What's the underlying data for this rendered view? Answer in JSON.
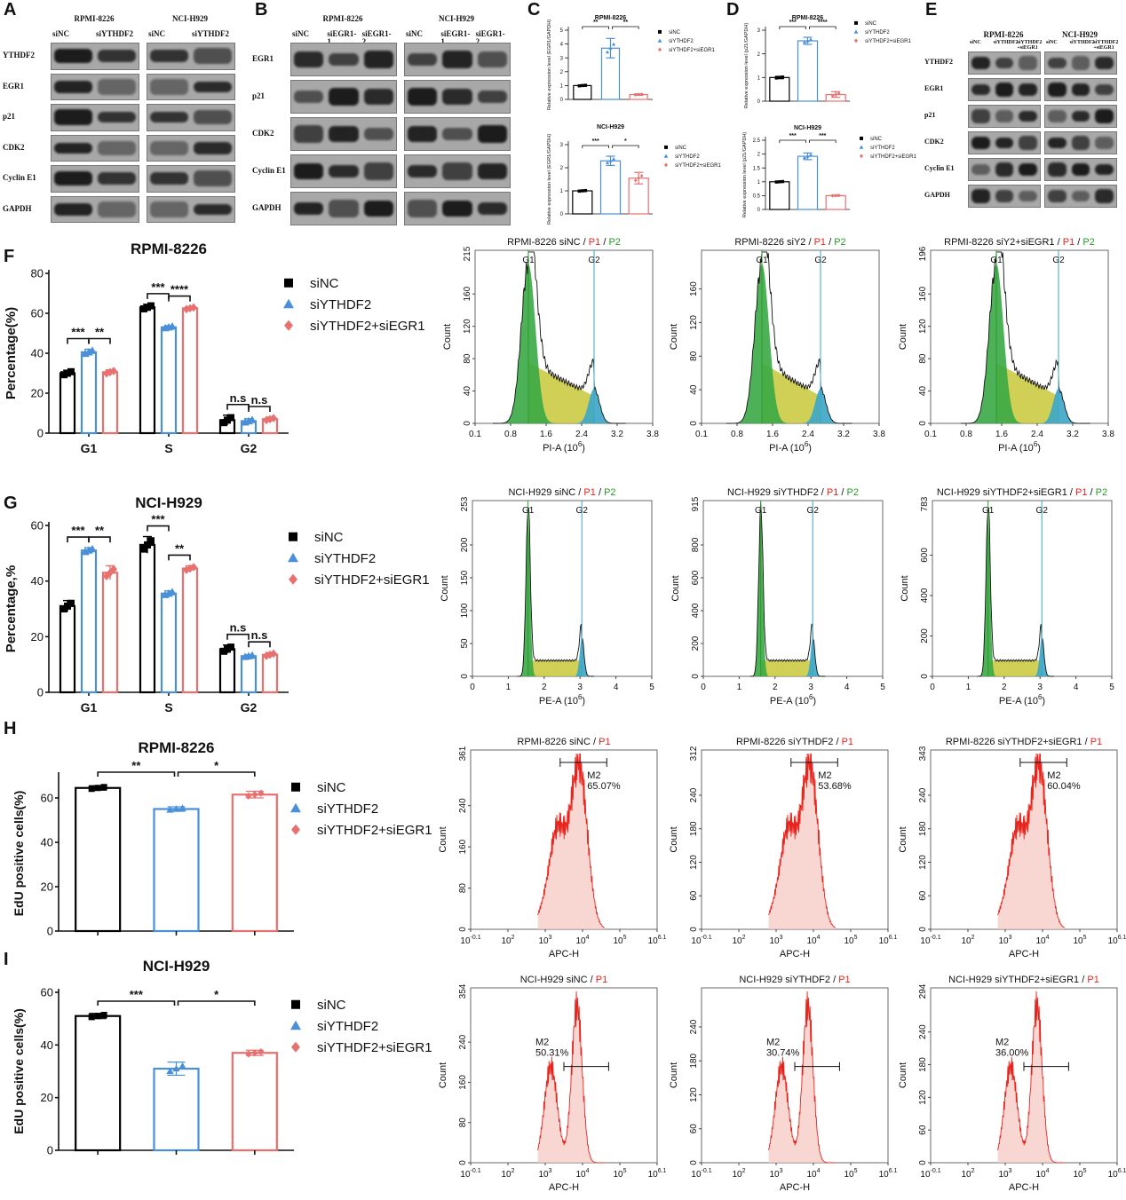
{
  "panels": {
    "A": "A",
    "B": "B",
    "C": "C",
    "D": "D",
    "E": "E",
    "F": "F",
    "G": "G",
    "H": "H",
    "I": "I"
  },
  "blotA": {
    "groups": [
      {
        "title": "RPMI-8226",
        "lanes": [
          "siNC",
          "siYTHDF2"
        ]
      },
      {
        "title": "NCI-H929",
        "lanes": [
          "siNC",
          "siYTHDF2"
        ]
      }
    ],
    "rows": [
      "YTHDF2",
      "EGR1",
      "p21",
      "CDK2",
      "Cyclin E1",
      "GAPDH"
    ]
  },
  "blotB": {
    "groups": [
      {
        "title": "RPMI-8226",
        "lanes": [
          "siNC",
          "siEGR1-1",
          "siEGR1-2"
        ]
      },
      {
        "title": "NCI-H929",
        "lanes": [
          "siNC",
          "siEGR1-1",
          "siEGR1-2"
        ]
      }
    ],
    "rows": [
      "EGR1",
      "p21",
      "CDK2",
      "Cyclin E1",
      "GAPDH"
    ]
  },
  "blotE": {
    "groups": [
      {
        "title": "RPMI-8226",
        "lanes": [
          "siNC",
          "siYTHDF2",
          "siYTHDF2 +siEGR1"
        ]
      },
      {
        "title": "NCI-H929",
        "lanes": [
          "siNC",
          "siYTHDF2",
          "siYTHDF2 +siEGR1"
        ]
      }
    ],
    "rows": [
      "YTHDF2",
      "EGR1",
      "p21",
      "CDK2",
      "Cyclin E1",
      "GAPDH"
    ]
  },
  "legend3": [
    "siNC",
    "siYTHDF2",
    "siYTHDF2+siEGR1"
  ],
  "colors": {
    "siNC": "#000000",
    "siYTHDF2": "#4a90d9",
    "siYTHDF2+siEGR1": "#e8706f",
    "gate_red": "#e8241d",
    "p2_green": "#2a9a2a"
  },
  "chart_data": [
    {
      "id": "C1",
      "type": "bar",
      "title": "RPMI-8226",
      "ylabel": "Relative expression level (EGR1/GAPDH)",
      "ylim": [
        0,
        5
      ],
      "yticks": [
        0,
        1,
        2,
        3,
        4,
        5
      ],
      "categories": [
        "siNC",
        "siYTHDF2",
        "siYTHDF2+siEGR1"
      ],
      "values": [
        1.0,
        3.7,
        0.35
      ],
      "errors": [
        0.05,
        0.7,
        0.05
      ],
      "sig": [
        {
          "from": 0,
          "to": 1,
          "label": "**"
        },
        {
          "from": 1,
          "to": 2,
          "label": "**"
        }
      ]
    },
    {
      "id": "C2",
      "type": "bar",
      "title": "NCI-H929",
      "ylabel": "Relative expression level (EGR1/GAPDH)",
      "ylim": [
        0,
        3
      ],
      "yticks": [
        0,
        1,
        2,
        3
      ],
      "categories": [
        "siNC",
        "siYTHDF2",
        "siYTHDF2+siEGR1"
      ],
      "values": [
        1.0,
        2.3,
        1.55
      ],
      "errors": [
        0.03,
        0.2,
        0.25
      ],
      "sig": [
        {
          "from": 0,
          "to": 1,
          "label": "***"
        },
        {
          "from": 1,
          "to": 2,
          "label": "*"
        }
      ]
    },
    {
      "id": "D1",
      "type": "bar",
      "title": "RPMI-8226",
      "ylabel": "Relative expression level (p21/GAPDH)",
      "ylim": [
        0,
        3
      ],
      "yticks": [
        0,
        1,
        2,
        3
      ],
      "categories": [
        "siNC",
        "siYTHDF2",
        "siYTHDF2+siEGR1"
      ],
      "values": [
        1.0,
        2.55,
        0.28
      ],
      "errors": [
        0.05,
        0.15,
        0.12
      ],
      "sig": [
        {
          "from": 0,
          "to": 1,
          "label": "***"
        },
        {
          "from": 1,
          "to": 2,
          "label": "****"
        }
      ]
    },
    {
      "id": "D2",
      "type": "bar",
      "title": "NCI-H929",
      "ylabel": "Relative expression level (p21/GAPDH)",
      "ylim": [
        0,
        2.5
      ],
      "yticks": [
        0.0,
        0.5,
        1.0,
        1.5,
        2.0,
        2.5
      ],
      "categories": [
        "siNC",
        "siYTHDF2",
        "siYTHDF2+siEGR1"
      ],
      "values": [
        1.0,
        1.92,
        0.5
      ],
      "errors": [
        0.02,
        0.12,
        0.02
      ],
      "sig": [
        {
          "from": 0,
          "to": 1,
          "label": "***"
        },
        {
          "from": 1,
          "to": 2,
          "label": "***"
        }
      ]
    },
    {
      "id": "F",
      "type": "bar",
      "title": "RPMI-8226",
      "ylabel": "Percentage(%)",
      "ylim": [
        0,
        80
      ],
      "yticks": [
        0,
        20,
        40,
        60,
        80
      ],
      "categories": [
        "G1",
        "S",
        "G2"
      ],
      "series": [
        {
          "name": "siNC",
          "values": [
            30,
            63,
            6.5
          ],
          "errors": [
            1.5,
            1.5,
            2.5
          ]
        },
        {
          "name": "siYTHDF2",
          "values": [
            40.5,
            53,
            6
          ],
          "errors": [
            1.5,
            0.8,
            1.2
          ]
        },
        {
          "name": "siYTHDF2+siEGR1",
          "values": [
            30.5,
            62.5,
            7
          ],
          "errors": [
            1.2,
            0.8,
            1
          ]
        }
      ],
      "sig": [
        {
          "cat": 0,
          "a": 0,
          "b": 1,
          "label": "***"
        },
        {
          "cat": 0,
          "a": 1,
          "b": 2,
          "label": "**"
        },
        {
          "cat": 1,
          "a": 0,
          "b": 1,
          "label": "***"
        },
        {
          "cat": 1,
          "a": 1,
          "b": 2,
          "label": "****"
        },
        {
          "cat": 2,
          "a": 0,
          "b": 1,
          "label": "n.s"
        },
        {
          "cat": 2,
          "a": 1,
          "b": 2,
          "label": "n.s"
        }
      ]
    },
    {
      "id": "G",
      "type": "bar",
      "title": "NCI-H929",
      "ylabel": "Percentage,%",
      "ylim": [
        0,
        60
      ],
      "yticks": [
        0,
        20,
        40,
        60
      ],
      "categories": [
        "G1",
        "S",
        "G2"
      ],
      "series": [
        {
          "name": "siNC",
          "values": [
            31,
            53,
            15.5
          ],
          "errors": [
            2,
            3,
            1.5
          ]
        },
        {
          "name": "siYTHDF2",
          "values": [
            51,
            35.5,
            13
          ],
          "errors": [
            1,
            1,
            0.5
          ]
        },
        {
          "name": "siYTHDF2+siEGR1",
          "values": [
            43,
            44.5,
            13.5
          ],
          "errors": [
            2.5,
            1,
            0.8
          ]
        }
      ],
      "sig": [
        {
          "cat": 0,
          "a": 0,
          "b": 1,
          "label": "***"
        },
        {
          "cat": 0,
          "a": 1,
          "b": 2,
          "label": "**"
        },
        {
          "cat": 1,
          "a": 0,
          "b": 1,
          "label": "***"
        },
        {
          "cat": 1,
          "a": 1,
          "b": 2,
          "label": "**"
        },
        {
          "cat": 2,
          "a": 0,
          "b": 1,
          "label": "n.s"
        },
        {
          "cat": 2,
          "a": 1,
          "b": 2,
          "label": "n.s"
        }
      ]
    },
    {
      "id": "H",
      "type": "bar",
      "title": "RPMI-8226",
      "ylabel": "EdU positive cells(%)",
      "ylim": [
        0,
        70
      ],
      "yticks": [
        0,
        20,
        40,
        60
      ],
      "categories": [
        "siNC",
        "siYTHDF2",
        "siYTHDF2+siEGR1"
      ],
      "values": [
        64.5,
        55,
        61.5
      ],
      "errors": [
        1,
        1,
        1.5
      ],
      "sig": [
        {
          "from": 0,
          "to": 1,
          "label": "**"
        },
        {
          "from": 1,
          "to": 2,
          "label": "*"
        }
      ]
    },
    {
      "id": "I",
      "type": "bar",
      "title": "NCI-H929",
      "ylabel": "EdU positive cells(%)",
      "ylim": [
        0,
        60
      ],
      "yticks": [
        0,
        20,
        40,
        60
      ],
      "categories": [
        "siNC",
        "siYTHDF2",
        "siYTHDF2+siEGR1"
      ],
      "values": [
        51,
        31,
        37
      ],
      "errors": [
        1,
        2.5,
        1
      ],
      "sig": [
        {
          "from": 0,
          "to": 1,
          "label": "***"
        },
        {
          "from": 1,
          "to": 2,
          "label": "*"
        }
      ]
    }
  ],
  "flow_cellcycle": [
    {
      "title": [
        "RPMI-8226 siNC / ",
        "P1",
        " / ",
        "P2"
      ],
      "ymax": "215",
      "yticks": [
        "0",
        "40",
        "80",
        "120",
        "160"
      ],
      "xticks": [
        "0.1",
        "0.8",
        "1.6",
        "2.4",
        "3.2",
        "3.8"
      ],
      "xlabel": "PI-A  (10",
      "xexp": "6",
      "gates": [
        "G1",
        "G2"
      ],
      "ylabel": "Count",
      "g1": 0.3,
      "g2": 0.67
    },
    {
      "title": [
        "RPMI-8226 siY2 / ",
        "P1",
        " / ",
        "P2"
      ],
      "ymax": "",
      "yticks": [
        "0",
        "40",
        "80",
        "120",
        "160"
      ],
      "xticks": [
        "0.1",
        "0.8",
        "1.6",
        "2.4",
        "3.2",
        "3.8"
      ],
      "xlabel": "PI-A  (10",
      "xexp": "6",
      "gates": [
        "G1",
        "G2"
      ],
      "ylabel": "Count",
      "g1": 0.34,
      "g2": 0.67
    },
    {
      "title": [
        "RPMI-8226 siY2+siEGR1 / ",
        "P1",
        " / ",
        "P2"
      ],
      "ymax": "196",
      "yticks": [
        "0",
        "40",
        "80",
        "120",
        "160"
      ],
      "xticks": [
        "0.1",
        "0.8",
        "1.6",
        "2.4",
        "3.2",
        "3.8"
      ],
      "xlabel": "PI-A  (10",
      "xexp": "6",
      "gates": [
        "G1",
        "G2"
      ],
      "ylabel": "Count",
      "g1": 0.37,
      "g2": 0.72
    },
    {
      "title": [
        "NCI-H929 siNC / ",
        "P1",
        " / ",
        "P2"
      ],
      "ymax": "253",
      "yticks": [
        "0",
        "50",
        "100",
        "150",
        "200"
      ],
      "xticks": [
        "0",
        "1",
        "2",
        "3",
        "4",
        "5"
      ],
      "xlabel": "PE-A  (10",
      "xexp": "6",
      "gates": [
        "G1",
        "G2"
      ],
      "ylabel": "Count",
      "g1": 0.31,
      "g2": 0.61
    },
    {
      "title": [
        "NCI-H929 siYTHDF2 / ",
        "P1",
        " / ",
        "P2"
      ],
      "ymax": "915",
      "yticks": [
        "0",
        "200",
        "400",
        "600",
        "800"
      ],
      "xticks": [
        "0",
        "1",
        "2",
        "3",
        "4",
        "5"
      ],
      "xlabel": "PE-A  (10",
      "xexp": "6",
      "gates": [
        "G1",
        "G2"
      ],
      "ylabel": "Count",
      "g1": 0.32,
      "g2": 0.61
    },
    {
      "title": [
        "NCI-H929 siYTHDF2+siEGR1 / ",
        "P1",
        " / ",
        "P2"
      ],
      "ymax": "783",
      "yticks": [
        "0",
        "200",
        "400",
        "600"
      ],
      "xticks": [
        "0",
        "1",
        "2",
        "3",
        "4",
        "5"
      ],
      "xlabel": "PE-A  (10",
      "xexp": "6",
      "gates": [
        "G1",
        "G2"
      ],
      "ylabel": "Count",
      "g1": 0.31,
      "g2": 0.61
    }
  ],
  "flow_edu": [
    {
      "title": [
        "RPMI-8226 siNC / ",
        "P1"
      ],
      "ymax": "361",
      "yticks": [
        "0",
        "80",
        "160",
        "240"
      ],
      "gate": "M2",
      "pct": "65.07%",
      "mode": "single",
      "ylabel": "Count",
      "xlabel": "APC-H"
    },
    {
      "title": [
        "RPMI-8226 siYTHDF2 / ",
        "P1"
      ],
      "ymax": "312",
      "yticks": [
        "0",
        "60",
        "120",
        "180",
        "240"
      ],
      "gate": "M2",
      "pct": "53.68%",
      "mode": "single",
      "ylabel": "Count",
      "xlabel": "APC-H"
    },
    {
      "title": [
        "RPMI-8226 siYTHDF2+siEGR1 / ",
        "P1"
      ],
      "ymax": "343",
      "yticks": [
        "0",
        "60",
        "120",
        "180",
        "240"
      ],
      "gate": "M2",
      "pct": "60.04%",
      "mode": "single",
      "ylabel": "Count",
      "xlabel": "APC-H"
    },
    {
      "title": [
        "NCI-H929 siNC / ",
        "P1"
      ],
      "ymax": "354",
      "yticks": [
        "0",
        "80",
        "160",
        "240"
      ],
      "gate": "M2",
      "pct": "50.31%",
      "mode": "double",
      "ylabel": "Count",
      "xlabel": "APC-H"
    },
    {
      "title": [
        "NCI-H929 siYTHDF2 / ",
        "P1"
      ],
      "ymax": "",
      "yticks": [
        "0",
        "60",
        "120",
        "180",
        "240"
      ],
      "gate": "M2",
      "pct": "30.74%",
      "mode": "double",
      "ylabel": "Count",
      "xlabel": "APC-H"
    },
    {
      "title": [
        "NCI-H929 siYTHDF2+siEGR1 / ",
        "P1"
      ],
      "ymax": "294",
      "yticks": [
        "0",
        "60",
        "120",
        "180",
        "240"
      ],
      "gate": "M2",
      "pct": "36.00%",
      "mode": "double",
      "ylabel": "Count",
      "xlabel": "APC-H"
    }
  ],
  "edu_xticks": [
    "-0.1",
    "2",
    "3",
    "4",
    "5",
    "6.1"
  ]
}
